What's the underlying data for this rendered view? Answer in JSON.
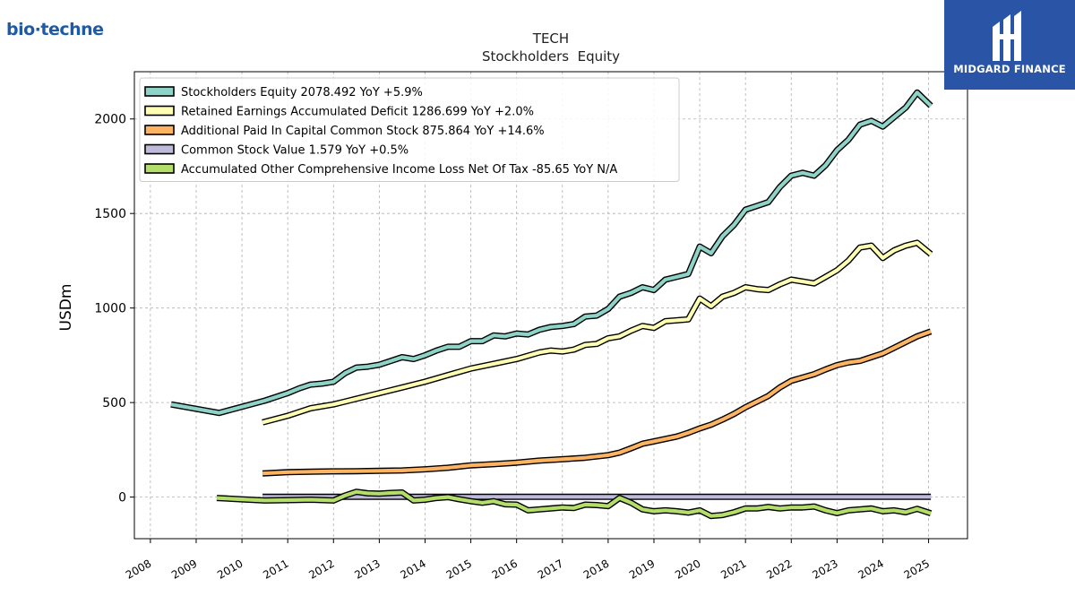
{
  "brand": {
    "logo_text": "bio·techne",
    "logo_color": "#1f5aa6",
    "partner_logo_text": "MIDGARD FINANCE",
    "partner_color": "#2a55a6"
  },
  "chart_data": {
    "type": "line",
    "title": "TECH",
    "subtitle": "Stockholders  Equity",
    "ylabel": "USDm",
    "xlabel": "",
    "ylim": [
      -220,
      2250
    ],
    "xlim": [
      2007.65,
      2025.85
    ],
    "yticks": [
      0,
      500,
      1000,
      1500,
      2000
    ],
    "xticks": [
      "2008",
      "2009",
      "2010",
      "2011",
      "2012",
      "2013",
      "2014",
      "2015",
      "2016",
      "2017",
      "2018",
      "2019",
      "2020",
      "2021",
      "2022",
      "2023",
      "2024",
      "2025"
    ],
    "grid": true,
    "legend_position": "top-left",
    "series": [
      {
        "name": "Stockholders Equity  2078.492 YoY +5.9%",
        "color": "#8dd3c7",
        "points": [
          [
            2008.45,
            490
          ],
          [
            2009.5,
            445
          ],
          [
            2010.5,
            510
          ],
          [
            2011.0,
            550
          ],
          [
            2011.25,
            575
          ],
          [
            2011.5,
            595
          ],
          [
            2011.75,
            600
          ],
          [
            2012.0,
            610
          ],
          [
            2012.25,
            655
          ],
          [
            2012.5,
            685
          ],
          [
            2012.75,
            690
          ],
          [
            2013.0,
            700
          ],
          [
            2013.25,
            720
          ],
          [
            2013.5,
            740
          ],
          [
            2013.75,
            730
          ],
          [
            2014.0,
            750
          ],
          [
            2014.25,
            775
          ],
          [
            2014.5,
            795
          ],
          [
            2014.75,
            795
          ],
          [
            2015.0,
            825
          ],
          [
            2015.25,
            825
          ],
          [
            2015.5,
            855
          ],
          [
            2015.75,
            850
          ],
          [
            2016.0,
            865
          ],
          [
            2016.25,
            860
          ],
          [
            2016.5,
            885
          ],
          [
            2016.75,
            900
          ],
          [
            2017.0,
            905
          ],
          [
            2017.25,
            915
          ],
          [
            2017.5,
            955
          ],
          [
            2017.75,
            960
          ],
          [
            2018.0,
            995
          ],
          [
            2018.25,
            1060
          ],
          [
            2018.5,
            1080
          ],
          [
            2018.75,
            1110
          ],
          [
            2019.0,
            1095
          ],
          [
            2019.25,
            1150
          ],
          [
            2019.5,
            1165
          ],
          [
            2019.75,
            1180
          ],
          [
            2020.0,
            1325
          ],
          [
            2020.25,
            1290
          ],
          [
            2020.5,
            1380
          ],
          [
            2020.75,
            1440
          ],
          [
            2021.0,
            1520
          ],
          [
            2021.25,
            1540
          ],
          [
            2021.5,
            1560
          ],
          [
            2021.75,
            1640
          ],
          [
            2022.0,
            1700
          ],
          [
            2022.25,
            1715
          ],
          [
            2022.5,
            1700
          ],
          [
            2022.75,
            1755
          ],
          [
            2023.0,
            1835
          ],
          [
            2023.25,
            1890
          ],
          [
            2023.5,
            1970
          ],
          [
            2023.75,
            1990
          ],
          [
            2024.0,
            1960
          ],
          [
            2024.25,
            2010
          ],
          [
            2024.5,
            2060
          ],
          [
            2024.75,
            2140
          ],
          [
            2025.05,
            2070
          ]
        ]
      },
      {
        "name": "Retained Earnings Accumulated Deficit  1286.699 YoY +2.0%",
        "color": "#ffffb3",
        "points": [
          [
            2010.45,
            395
          ],
          [
            2011.0,
            430
          ],
          [
            2011.5,
            470
          ],
          [
            2012.0,
            490
          ],
          [
            2012.5,
            520
          ],
          [
            2013.0,
            550
          ],
          [
            2013.5,
            580
          ],
          [
            2014.0,
            610
          ],
          [
            2014.5,
            645
          ],
          [
            2015.0,
            680
          ],
          [
            2015.5,
            705
          ],
          [
            2016.0,
            730
          ],
          [
            2016.5,
            765
          ],
          [
            2016.75,
            775
          ],
          [
            2017.0,
            770
          ],
          [
            2017.25,
            780
          ],
          [
            2017.5,
            805
          ],
          [
            2017.75,
            810
          ],
          [
            2018.0,
            840
          ],
          [
            2018.25,
            850
          ],
          [
            2018.5,
            880
          ],
          [
            2018.75,
            905
          ],
          [
            2019.0,
            895
          ],
          [
            2019.25,
            930
          ],
          [
            2019.5,
            935
          ],
          [
            2019.75,
            940
          ],
          [
            2020.0,
            1050
          ],
          [
            2020.25,
            1010
          ],
          [
            2020.5,
            1060
          ],
          [
            2020.75,
            1080
          ],
          [
            2021.0,
            1110
          ],
          [
            2021.25,
            1100
          ],
          [
            2021.5,
            1095
          ],
          [
            2021.75,
            1125
          ],
          [
            2022.0,
            1150
          ],
          [
            2022.25,
            1140
          ],
          [
            2022.5,
            1130
          ],
          [
            2022.75,
            1165
          ],
          [
            2023.0,
            1200
          ],
          [
            2023.25,
            1250
          ],
          [
            2023.5,
            1320
          ],
          [
            2023.75,
            1330
          ],
          [
            2024.0,
            1265
          ],
          [
            2024.25,
            1305
          ],
          [
            2024.5,
            1330
          ],
          [
            2024.75,
            1345
          ],
          [
            2025.05,
            1285
          ]
        ]
      },
      {
        "name": "Additional Paid In Capital Common Stock  875.864 YoY +14.6%",
        "color": "#fdb462",
        "points": [
          [
            2010.45,
            125
          ],
          [
            2011.0,
            132
          ],
          [
            2011.5,
            134
          ],
          [
            2012.0,
            136
          ],
          [
            2012.5,
            137
          ],
          [
            2013.0,
            139
          ],
          [
            2013.5,
            141
          ],
          [
            2014.0,
            147
          ],
          [
            2014.5,
            155
          ],
          [
            2015.0,
            168
          ],
          [
            2015.5,
            174
          ],
          [
            2016.0,
            182
          ],
          [
            2016.5,
            193
          ],
          [
            2017.0,
            200
          ],
          [
            2017.5,
            208
          ],
          [
            2018.0,
            222
          ],
          [
            2018.25,
            235
          ],
          [
            2018.5,
            258
          ],
          [
            2018.75,
            282
          ],
          [
            2019.0,
            295
          ],
          [
            2019.5,
            320
          ],
          [
            2019.75,
            340
          ],
          [
            2020.0,
            363
          ],
          [
            2020.25,
            383
          ],
          [
            2020.5,
            410
          ],
          [
            2020.75,
            440
          ],
          [
            2021.0,
            475
          ],
          [
            2021.25,
            505
          ],
          [
            2021.5,
            535
          ],
          [
            2021.75,
            580
          ],
          [
            2022.0,
            615
          ],
          [
            2022.5,
            650
          ],
          [
            2022.75,
            675
          ],
          [
            2023.0,
            698
          ],
          [
            2023.25,
            712
          ],
          [
            2023.5,
            720
          ],
          [
            2023.75,
            740
          ],
          [
            2024.0,
            760
          ],
          [
            2024.25,
            790
          ],
          [
            2024.5,
            820
          ],
          [
            2024.75,
            850
          ],
          [
            2025.05,
            876
          ]
        ]
      },
      {
        "name": "Common Stock Value  1.579 YoY +0.5%",
        "color": "#bebada",
        "points": [
          [
            2010.45,
            1.5
          ],
          [
            2025.05,
            1.6
          ]
        ]
      },
      {
        "name": "Accumulated Other Comprehensive Income Loss Net Of Tax  -85.65 YoY N/A",
        "color": "#b3de69",
        "points": [
          [
            2009.45,
            -5
          ],
          [
            2010.0,
            -12
          ],
          [
            2010.5,
            -18
          ],
          [
            2011.0,
            -16
          ],
          [
            2011.5,
            -14
          ],
          [
            2012.0,
            -18
          ],
          [
            2012.25,
            8
          ],
          [
            2012.5,
            28
          ],
          [
            2012.75,
            20
          ],
          [
            2013.0,
            18
          ],
          [
            2013.25,
            22
          ],
          [
            2013.5,
            24
          ],
          [
            2013.75,
            -18
          ],
          [
            2014.0,
            -14
          ],
          [
            2014.25,
            -5
          ],
          [
            2014.5,
            0
          ],
          [
            2014.75,
            -12
          ],
          [
            2015.0,
            -22
          ],
          [
            2015.25,
            -30
          ],
          [
            2015.5,
            -22
          ],
          [
            2015.75,
            -38
          ],
          [
            2016.0,
            -40
          ],
          [
            2016.25,
            -70
          ],
          [
            2016.5,
            -65
          ],
          [
            2016.75,
            -60
          ],
          [
            2017.0,
            -55
          ],
          [
            2017.25,
            -58
          ],
          [
            2017.5,
            -40
          ],
          [
            2017.75,
            -42
          ],
          [
            2018.0,
            -48
          ],
          [
            2018.25,
            -5
          ],
          [
            2018.5,
            -30
          ],
          [
            2018.75,
            -65
          ],
          [
            2019.0,
            -75
          ],
          [
            2019.25,
            -70
          ],
          [
            2019.5,
            -75
          ],
          [
            2019.75,
            -82
          ],
          [
            2020.0,
            -70
          ],
          [
            2020.25,
            -100
          ],
          [
            2020.5,
            -95
          ],
          [
            2020.75,
            -80
          ],
          [
            2021.0,
            -60
          ],
          [
            2021.25,
            -60
          ],
          [
            2021.5,
            -52
          ],
          [
            2021.75,
            -60
          ],
          [
            2022.0,
            -55
          ],
          [
            2022.25,
            -55
          ],
          [
            2022.5,
            -50
          ],
          [
            2022.75,
            -70
          ],
          [
            2023.0,
            -85
          ],
          [
            2023.25,
            -70
          ],
          [
            2023.5,
            -65
          ],
          [
            2023.75,
            -60
          ],
          [
            2024.0,
            -75
          ],
          [
            2024.25,
            -70
          ],
          [
            2024.5,
            -80
          ],
          [
            2024.75,
            -62
          ],
          [
            2025.05,
            -86
          ]
        ]
      }
    ]
  }
}
